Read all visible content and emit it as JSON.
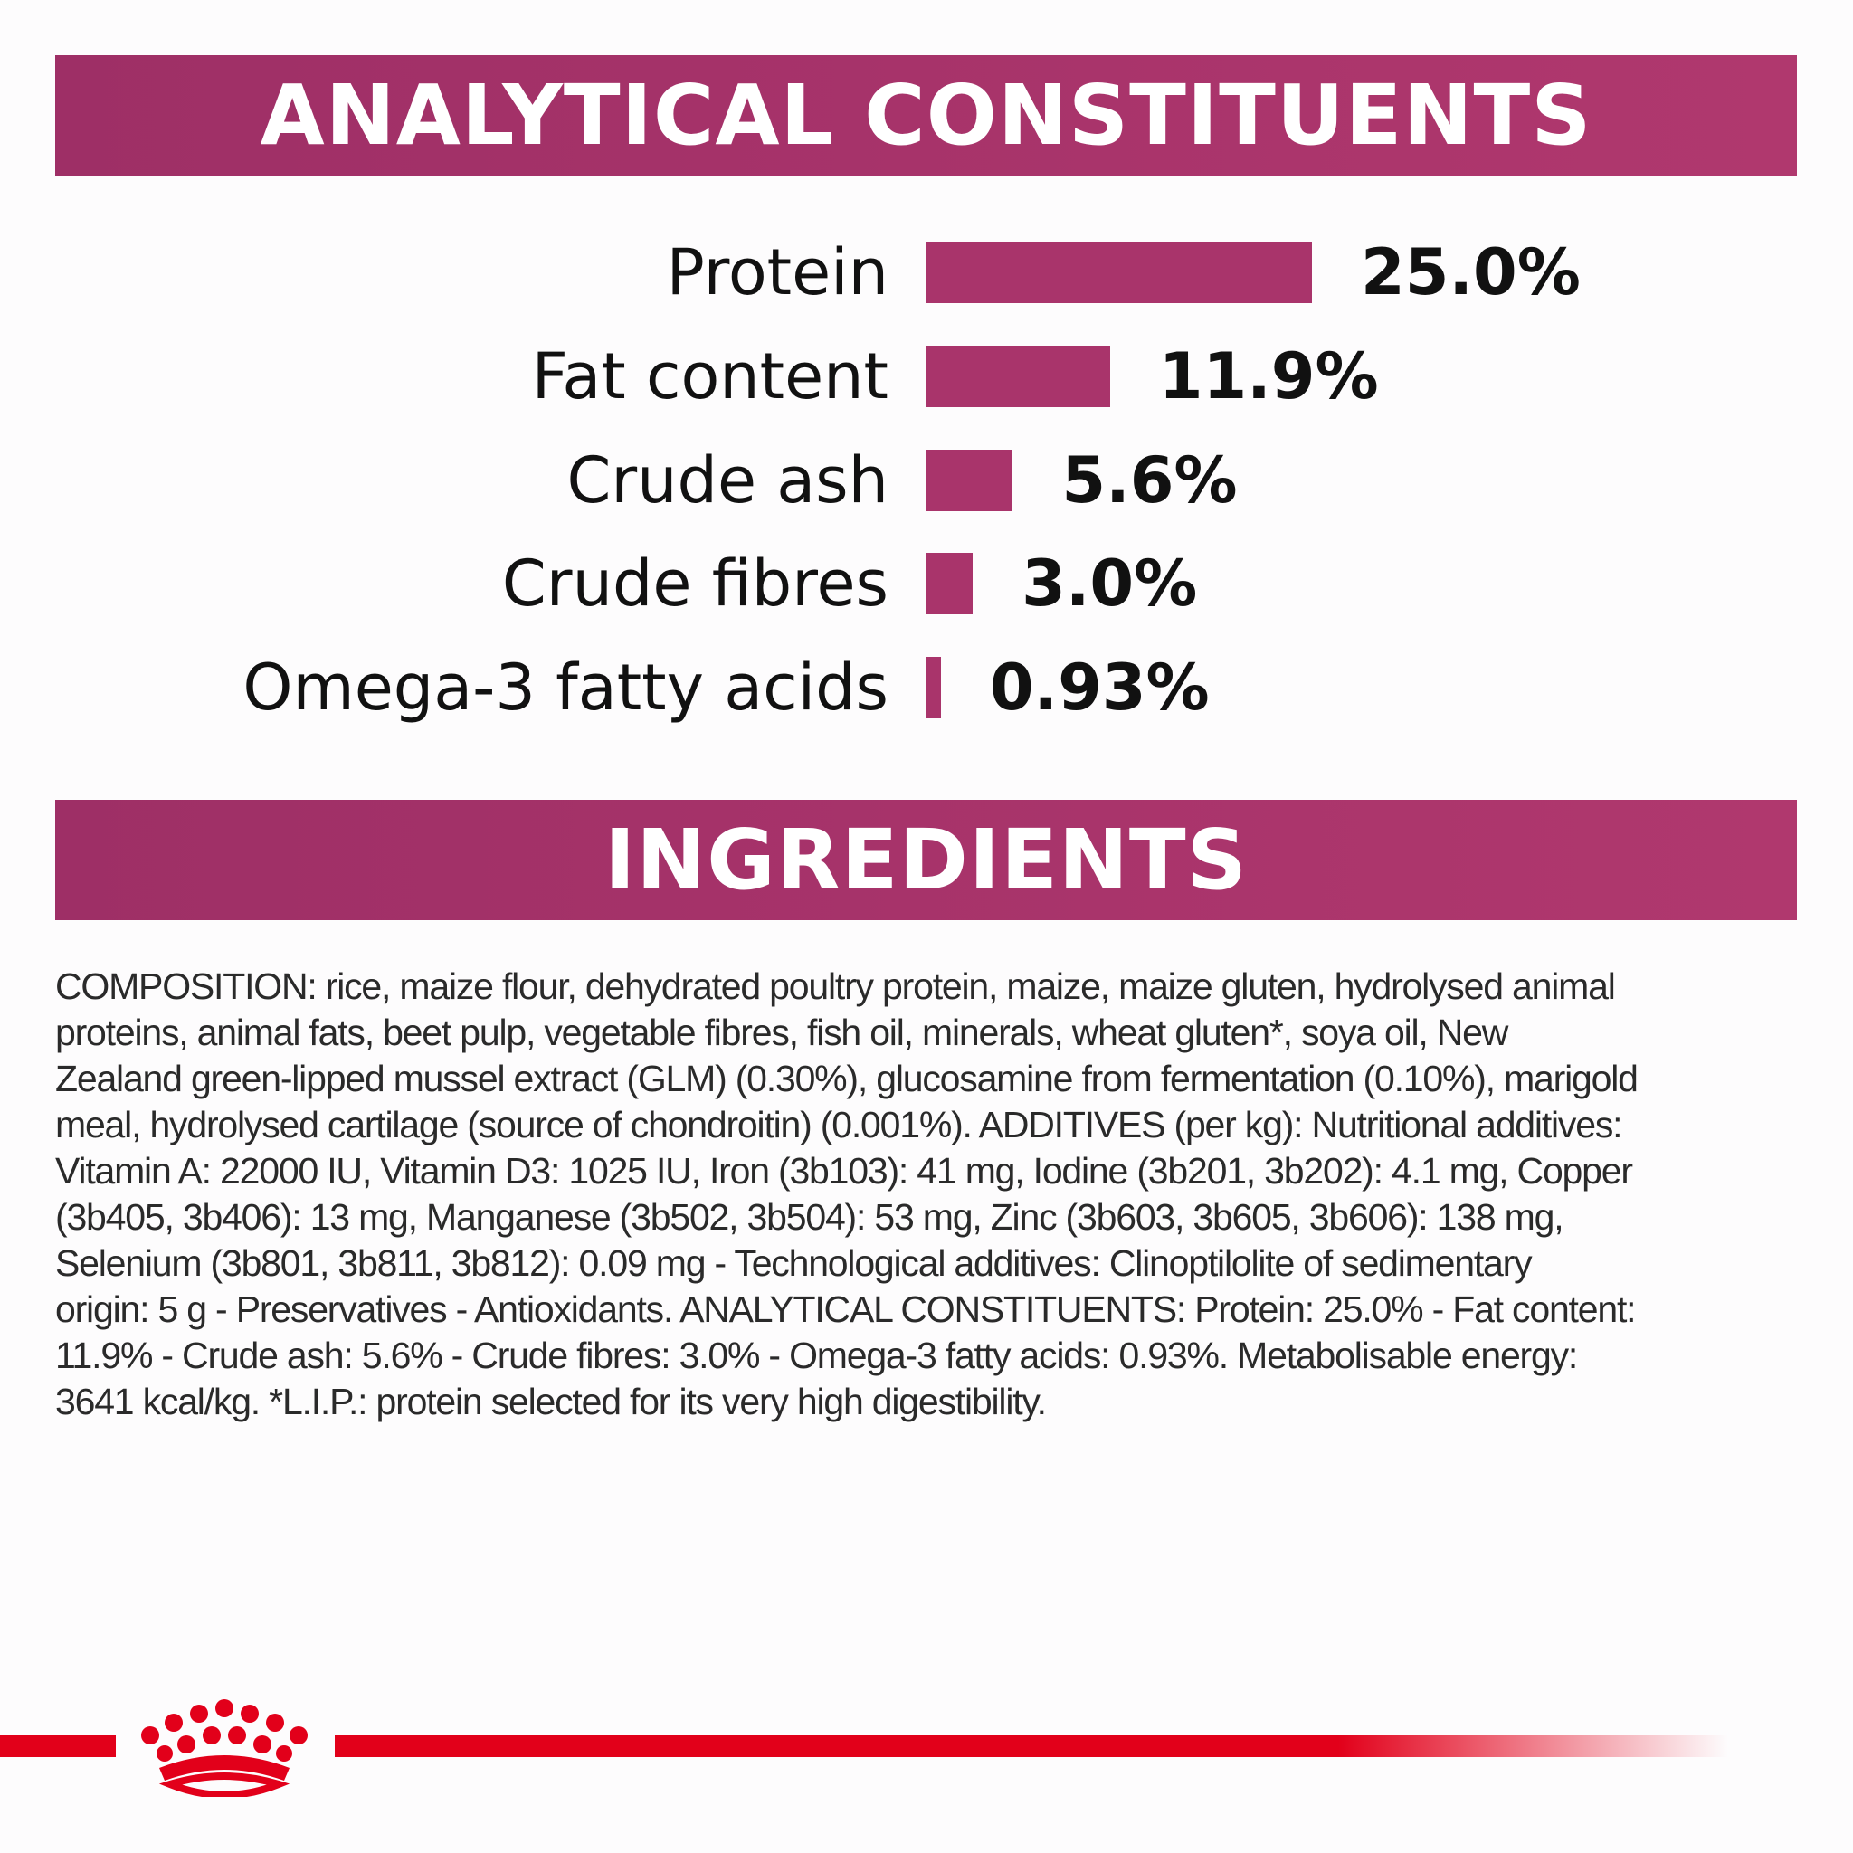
{
  "analytical": {
    "title": "ANALYTICAL CONSTITUENTS",
    "bar_color": "#a9346b"
  },
  "chart_data": {
    "type": "bar",
    "orientation": "horizontal",
    "title": "ANALYTICAL CONSTITUENTS",
    "categories": [
      "Protein",
      "Fat content",
      "Crude ash",
      "Crude fibres",
      "Omega-3 fatty acids"
    ],
    "values": [
      25.0,
      11.9,
      5.6,
      3.0,
      0.93
    ],
    "labels": [
      "25.0%",
      "11.9%",
      "5.6%",
      "3.0%",
      "0.93%"
    ],
    "unit": "%"
  },
  "ingredients": {
    "title": "INGREDIENTS",
    "lines": [
      "COMPOSITION: rice, maize flour, dehydrated poultry protein, maize, maize gluten, hydrolysed animal",
      "proteins, animal fats, beet pulp, vegetable fibres, fish oil, minerals, wheat gluten*, soya oil, New",
      "Zealand green-lipped mussel extract (GLM) (0.30%), glucosamine from fermentation (0.10%), marigold",
      "meal, hydrolysed cartilage (source of chondroitin) (0.001%). ADDITIVES (per kg): Nutritional additives:",
      "Vitamin A: 22000 IU, Vitamin D3: 1025 IU, Iron (3b103): 41 mg, Iodine (3b201, 3b202): 4.1 mg, Copper",
      "(3b405, 3b406): 13 mg, Manganese (3b502, 3b504): 53 mg, Zinc (3b603, 3b605, 3b606): 138 mg,",
      "Selenium (3b801, 3b811, 3b812): 0.09 mg - Technological additives: Clinoptilolite of sedimentary",
      "origin: 5 g - Preservatives - Antioxidants. ANALYTICAL CONSTITUENTS: Protein: 25.0% - Fat content:",
      "11.9% - Crude ash: 5.6% - Crude fibres: 3.0% - Omega-3 fatty acids: 0.93%. Metabolisable energy:",
      "3641 kcal/kg. *L.I.P.: protein selected for its very high digestibility."
    ]
  },
  "footer": {
    "logo": "royal-canin-crown",
    "brand_color": "#e2001a"
  }
}
